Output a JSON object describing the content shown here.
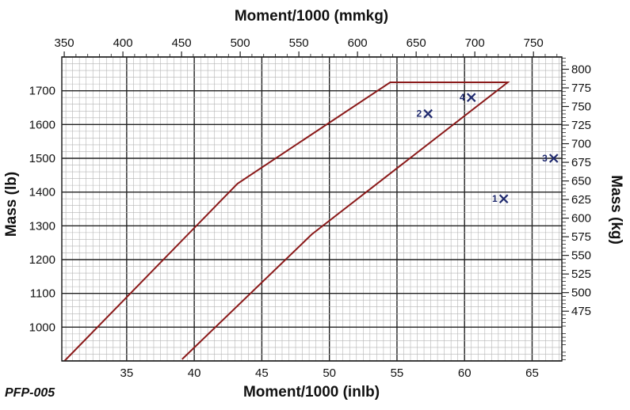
{
  "chart_data": {
    "type": "line",
    "figure_id": "PFP-005",
    "x_top_label": "Moment/1000 (mmkg)",
    "x_bottom_label": "Moment/1000 (inlb)",
    "y_left_label": "Mass (lb)",
    "y_right_label": "Mass (kg)",
    "x_bottom_range": [
      30.2,
      67.2
    ],
    "y_left_range": [
      900,
      1800
    ],
    "x_bottom_ticks": [
      "35",
      "40",
      "45",
      "50",
      "55",
      "60",
      "65"
    ],
    "x_top_ticks": [
      "350",
      "400",
      "450",
      "500",
      "550",
      "600",
      "650",
      "700",
      "750"
    ],
    "y_left_ticks": [
      "1000",
      "1100",
      "1200",
      "1300",
      "1400",
      "1500",
      "1600",
      "1700"
    ],
    "y_right_ticks": [
      "475",
      "500",
      "525",
      "550",
      "575",
      "600",
      "625",
      "650",
      "675",
      "700",
      "725",
      "750",
      "775",
      "800"
    ],
    "grid": true,
    "envelope": {
      "name": "",
      "color": "#8b1a1a",
      "points": [
        {
          "x": 30.4,
          "y": 900
        },
        {
          "x": 43.2,
          "y": 1425
        },
        {
          "x": 54.5,
          "y": 1725
        },
        {
          "x": 63.2,
          "y": 1725
        },
        {
          "x": 48.7,
          "y": 1275
        },
        {
          "x": 39.1,
          "y": 905
        }
      ]
    },
    "points": [
      {
        "label": "1",
        "x": 62.9,
        "y": 1380
      },
      {
        "label": "2",
        "x": 57.3,
        "y": 1632
      },
      {
        "label": "3",
        "x": 66.6,
        "y": 1500
      },
      {
        "label": "4",
        "x": 60.5,
        "y": 1680
      }
    ],
    "marker_color": "#1f2a6e"
  }
}
